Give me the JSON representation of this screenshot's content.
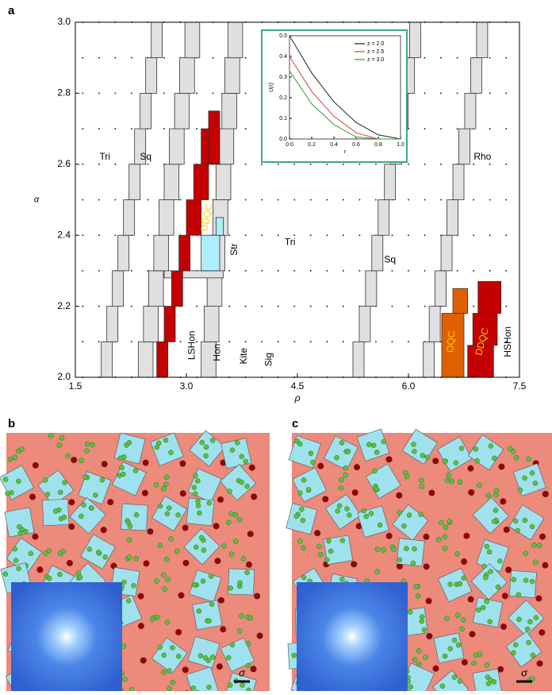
{
  "panel_a": {
    "label": "a",
    "xlabel": "ρ",
    "ylabel": "α",
    "xlim": [
      1.5,
      7.5
    ],
    "xticks": [
      1.5,
      {
        "value": 3,
        "label": "3.0"
      },
      4.5,
      {
        "value": 6,
        "label": "6.0"
      },
      7.5
    ],
    "ylim": [
      2,
      3
    ],
    "yticks": [
      {
        "value": 2,
        "label": "2.0"
      },
      2.2,
      2.4,
      2.6,
      2.8,
      {
        "value": 3,
        "label": "3.0"
      }
    ],
    "region_labels": [
      "Tri",
      "Sq",
      "DDQC",
      "Tri",
      "Sq",
      "Rho",
      "Str",
      "LSHon",
      "Hon",
      "Kite",
      "Sig",
      "OQC",
      "DDQC",
      "HSHon"
    ],
    "inset": {
      "type": "line",
      "xlabel": "r",
      "ylabel": "U(r)",
      "x": [
        0,
        0.2,
        0.4,
        0.6,
        0.8,
        1.0
      ],
      "series": [
        {
          "name": "z = 2.0",
          "color": "#222222",
          "values": [
            0.5,
            0.32,
            0.18,
            0.08,
            0.02,
            0
          ]
        },
        {
          "name": "z = 2.5",
          "color": "#d04040",
          "values": [
            0.4,
            0.23,
            0.11,
            0.03,
            0,
            0
          ]
        },
        {
          "name": "z = 3.0",
          "color": "#3a9a3a",
          "values": [
            0.33,
            0.17,
            0.07,
            0.01,
            0,
            0
          ]
        }
      ],
      "xlim": [
        0,
        1
      ],
      "xticks": [
        {
          "value": 0,
          "label": "0.0"
        },
        0.2,
        0.4,
        0.6,
        0.8,
        {
          "value": 1,
          "label": "1.0"
        }
      ],
      "ylim": [
        0,
        0.5
      ],
      "yticks": [
        {
          "value": 0,
          "label": "0.0"
        },
        0.1,
        0.2,
        0.3,
        0.4,
        0.5
      ]
    }
  },
  "panel_b": {
    "label": "b",
    "scale": "σ"
  },
  "panel_c": {
    "label": "c",
    "scale": "σ"
  }
}
